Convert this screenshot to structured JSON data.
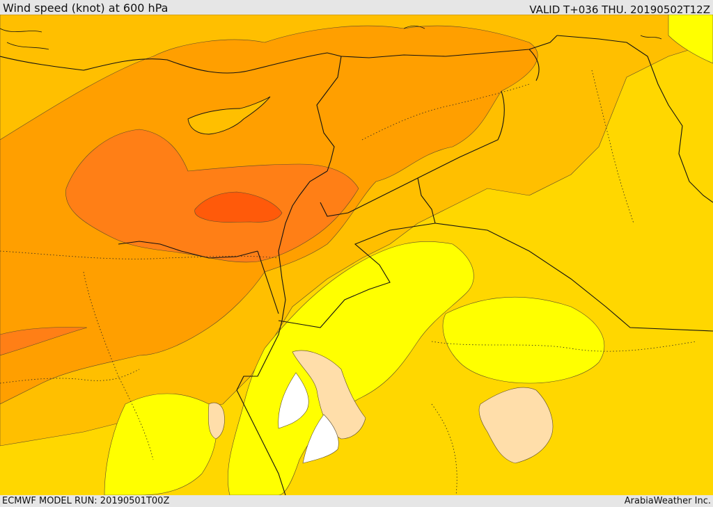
{
  "header": {
    "title": "Wind speed (knot) at 600 hPa",
    "valid": "VALID T+036 THU. 20190502T12Z"
  },
  "footer": {
    "model_run": "ECMWF MODEL RUN: 20190501T00Z",
    "credit": "ArabiaWeather Inc."
  },
  "colors": {
    "level_yellow": "#ffff00",
    "level_gold": "#ffd700",
    "level_amber": "#ffbf00",
    "level_orange": "#ff9f00",
    "level_dark_orange": "#ff7f16",
    "level_red_orange": "#ff5a0a",
    "level_tan": "#ffdeaa",
    "level_white": "#ffffff"
  }
}
